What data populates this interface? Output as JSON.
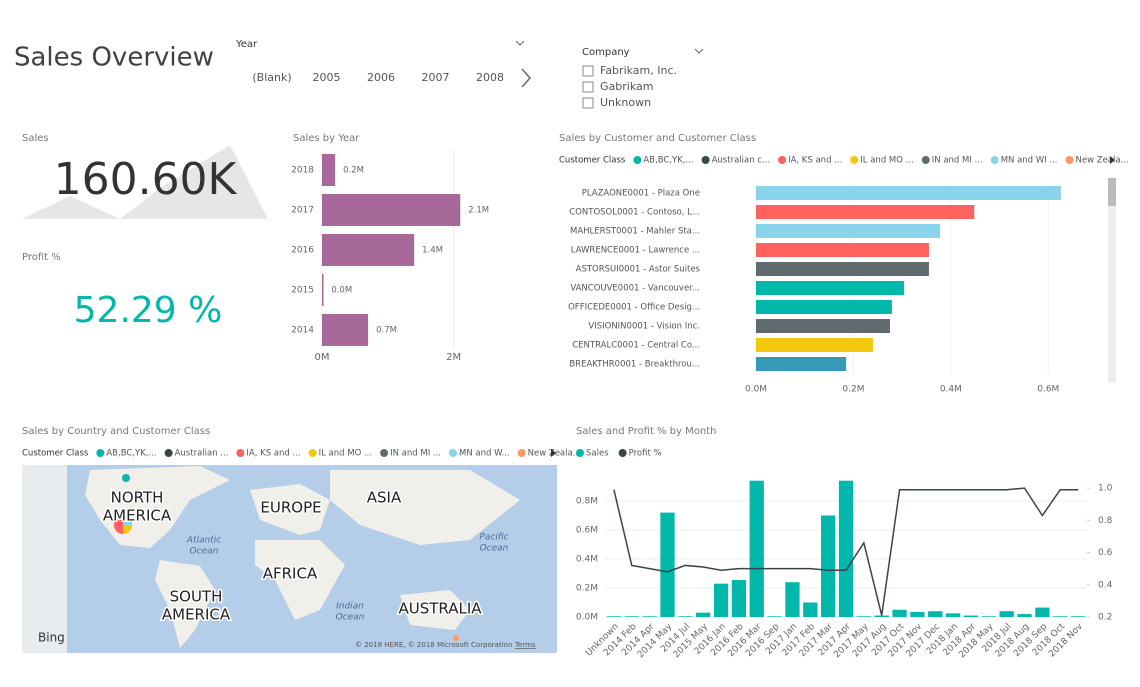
{
  "title": "Sales Overview",
  "year_slicer": {
    "label": "Year",
    "options": [
      "(Blank)",
      "2005",
      "2006",
      "2007",
      "2008"
    ]
  },
  "company_slicer": {
    "label": "Company",
    "options": [
      "Fabrikam, Inc.",
      "Gabrikam",
      "Unknown"
    ]
  },
  "cards": {
    "sales": {
      "label": "Sales",
      "value": "160.60K"
    },
    "profit": {
      "label": "Profit %",
      "value": "52.29 %"
    }
  },
  "chart_data": [
    {
      "type": "hbar",
      "title": "Sales by Year",
      "color": "#a66999",
      "categories": [
        "2018",
        "2017",
        "2016",
        "2015",
        "2014"
      ],
      "values": [
        0.2,
        2.1,
        1.4,
        0.02,
        0.7
      ],
      "value_labels": [
        "0.2M",
        "2.1M",
        "1.4M",
        "0.0M",
        "0.7M"
      ],
      "xlim": [
        0,
        2.4
      ],
      "xticks": [
        {
          "value": 0,
          "label": "0M"
        },
        {
          "value": 2,
          "label": "2M"
        }
      ]
    },
    {
      "type": "hbar-class",
      "title": "Sales by Customer and Customer Class",
      "legend": {
        "title": "Customer Class",
        "items": [
          {
            "name": "AB,BC,YK,...",
            "color": "#01b8aa"
          },
          {
            "name": "Australian c...",
            "color": "#374649"
          },
          {
            "name": "IA, KS and ...",
            "color": "#fd625e"
          },
          {
            "name": "IL and MO ...",
            "color": "#f2c80f"
          },
          {
            "name": "IN and MI ...",
            "color": "#5f6b6d"
          },
          {
            "name": "MN and WI ...",
            "color": "#8ad4eb"
          },
          {
            "name": "New Zeala...",
            "color": "#fe9666"
          }
        ]
      },
      "categories": [
        "PLAZAONE0001 - Plaza One",
        "CONTOSOL0001 - Contoso, L...",
        "MAHLERST0001 - Mahler Sta...",
        "LAWRENCE0001 - Lawrence ...",
        "ASTORSUI0001 - Astor Suites",
        "VANCOUVE0001 - Vancouver...",
        "OFFICEDE0001 - Office Desig...",
        "VISIONIN0001 - Vision Inc.",
        "CENTRALC0001 - Central Co...",
        "BREAKTHR0001 - Breakthrou..."
      ],
      "values": [
        0.626,
        0.448,
        0.378,
        0.355,
        0.355,
        0.304,
        0.279,
        0.275,
        0.24,
        0.185
      ],
      "colors": [
        "#8ad4eb",
        "#fd625e",
        "#8ad4eb",
        "#fd625e",
        "#5f6b6d",
        "#01b8aa",
        "#01b8aa",
        "#5f6b6d",
        "#f2c80f",
        "#3599b8"
      ],
      "xlim": [
        0,
        0.7
      ],
      "xticks": [
        {
          "value": 0,
          "label": "0.0M"
        },
        {
          "value": 0.2,
          "label": "0.2M"
        },
        {
          "value": 0.4,
          "label": "0.4M"
        },
        {
          "value": 0.6,
          "label": "0.6M"
        }
      ]
    },
    {
      "type": "map",
      "title": "Sales by Country and Customer Class",
      "legend": {
        "title": "Customer Class",
        "items": [
          {
            "name": "AB,BC,YK,...",
            "color": "#01b8aa"
          },
          {
            "name": "Australian ...",
            "color": "#374649"
          },
          {
            "name": "IA, KS and ...",
            "color": "#fd625e"
          },
          {
            "name": "IL and MO ...",
            "color": "#f2c80f"
          },
          {
            "name": "IN and MI ...",
            "color": "#5f6b6d"
          },
          {
            "name": "MN and W...",
            "color": "#8ad4eb"
          },
          {
            "name": "New Zeala...",
            "color": "#fe9666"
          }
        ]
      },
      "continents": [
        "NORTH AMERICA",
        "EUROPE",
        "ASIA",
        "AFRICA",
        "SOUTH AMERICA",
        "AUSTRALIA"
      ],
      "oceans": [
        "Atlantic Ocean",
        "Pacific Ocean",
        "Indian Ocean"
      ],
      "logo": "Bing",
      "attribution": "© 2018 HERE, © 2018 Microsoft Corporation",
      "terms": "Terms"
    },
    {
      "type": "combo",
      "title": "Sales and Profit % by Month",
      "categories": [
        "Unknown",
        "2014 Feb",
        "2014 Apr",
        "2014 May",
        "2014 Jul",
        "2015 May",
        "2016 Jan",
        "2016 Feb",
        "2016 Mar",
        "2016 Sep",
        "2017 Jan",
        "2017 Feb",
        "2017 Mar",
        "2017 Apr",
        "2017 May",
        "2017 Aug",
        "2017 Oct",
        "2017 Nov",
        "2017 Dec",
        "2018 Jan",
        "2018 Apr",
        "2018 May",
        "2018 Jul",
        "2018 Aug",
        "2018 Sep",
        "2018 Oct",
        "2018 Nov"
      ],
      "series": [
        {
          "name": "Sales",
          "color": "#01b8aa",
          "values": [
            0.005,
            0.005,
            0.005,
            0.72,
            0.005,
            0.03,
            0.23,
            0.255,
            0.94,
            0.005,
            0.24,
            0.1,
            0.7,
            0.94,
            0.005,
            0.01,
            0.05,
            0.035,
            0.04,
            0.025,
            0.01,
            0.005,
            0.04,
            0.02,
            0.065,
            0.005,
            0.005
          ]
        },
        {
          "name": "Profit %",
          "color": "#374649",
          "axis": "y2",
          "values": [
            0.99,
            0.52,
            0.5,
            0.48,
            0.52,
            0.51,
            0.49,
            0.5,
            0.5,
            0.5,
            0.5,
            0.5,
            0.49,
            0.49,
            0.66,
            0.21,
            0.99,
            0.99,
            0.99,
            0.99,
            0.99,
            0.99,
            0.99,
            1.0,
            0.83,
            0.99,
            0.99
          ]
        }
      ],
      "ylim": [
        0,
        1.0
      ],
      "yticks": [
        {
          "value": 0,
          "label": "0.0M"
        },
        {
          "value": 0.2,
          "label": "0.2M"
        },
        {
          "value": 0.4,
          "label": "0.4M"
        },
        {
          "value": 0.6,
          "label": "0.6M"
        },
        {
          "value": 0.8,
          "label": "0.8M"
        }
      ],
      "y2lim": [
        0.2,
        1.1
      ],
      "y2ticks": [
        0.2,
        0.4,
        0.6,
        0.8,
        {
          "value": 1,
          "label": "1.0"
        }
      ]
    }
  ]
}
